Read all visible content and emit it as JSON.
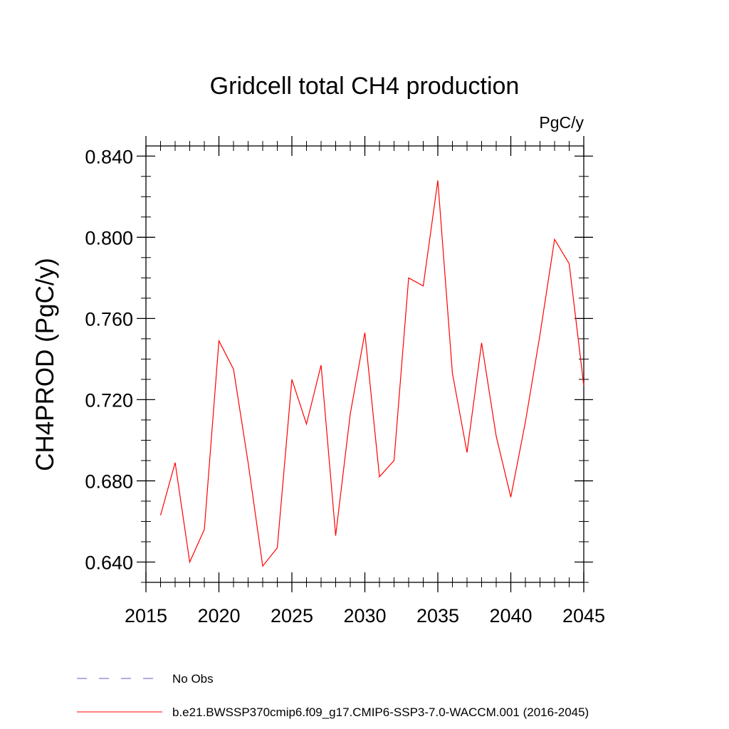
{
  "chart_data": {
    "type": "line",
    "title": "Gridcell total CH4 production",
    "units": "PgC/y",
    "ylabel": "CH4PROD  (PgC/y)",
    "xlabel": "",
    "xlim": [
      2015,
      2045
    ],
    "ylim": [
      0.63,
      0.845
    ],
    "x_ticks": [
      2015,
      2020,
      2025,
      2030,
      2035,
      2040,
      2045
    ],
    "x_tick_labels": [
      "2015",
      "2020",
      "2025",
      "2030",
      "2035",
      "2040",
      "2045"
    ],
    "y_ticks": [
      0.64,
      0.68,
      0.72,
      0.76,
      0.8,
      0.84
    ],
    "y_tick_labels": [
      "0.640",
      "0.680",
      "0.720",
      "0.760",
      "0.800",
      "0.840"
    ],
    "y_minor_step": 0.01,
    "x_minor_step": 1,
    "grid": false,
    "series": [
      {
        "name": "b.e21.BWSSP370cmip6.f09_g17.CMIP6-SSP3-7.0-WACCM.001 (2016-2045)",
        "color": "#ff0000",
        "style": "solid",
        "x": [
          2016,
          2017,
          2018,
          2019,
          2020,
          2021,
          2022,
          2023,
          2024,
          2025,
          2026,
          2027,
          2028,
          2029,
          2030,
          2031,
          2032,
          2033,
          2034,
          2035,
          2036,
          2037,
          2038,
          2039,
          2040,
          2041,
          2042,
          2043,
          2044,
          2045
        ],
        "values": [
          0.663,
          0.689,
          0.64,
          0.656,
          0.749,
          0.735,
          0.689,
          0.638,
          0.647,
          0.73,
          0.708,
          0.737,
          0.653,
          0.713,
          0.753,
          0.682,
          0.69,
          0.78,
          0.776,
          0.828,
          0.733,
          0.694,
          0.748,
          0.702,
          0.672,
          0.709,
          0.752,
          0.799,
          0.787,
          0.727
        ]
      }
    ],
    "legend": [
      {
        "label": "No Obs",
        "color": "#6a5acd",
        "style": "dashed"
      },
      {
        "label": "b.e21.BWSSP370cmip6.f09_g17.CMIP6-SSP3-7.0-WACCM.001 (2016-2045)",
        "color": "#ff0000",
        "style": "solid"
      }
    ],
    "legend_placement": "bottom"
  }
}
